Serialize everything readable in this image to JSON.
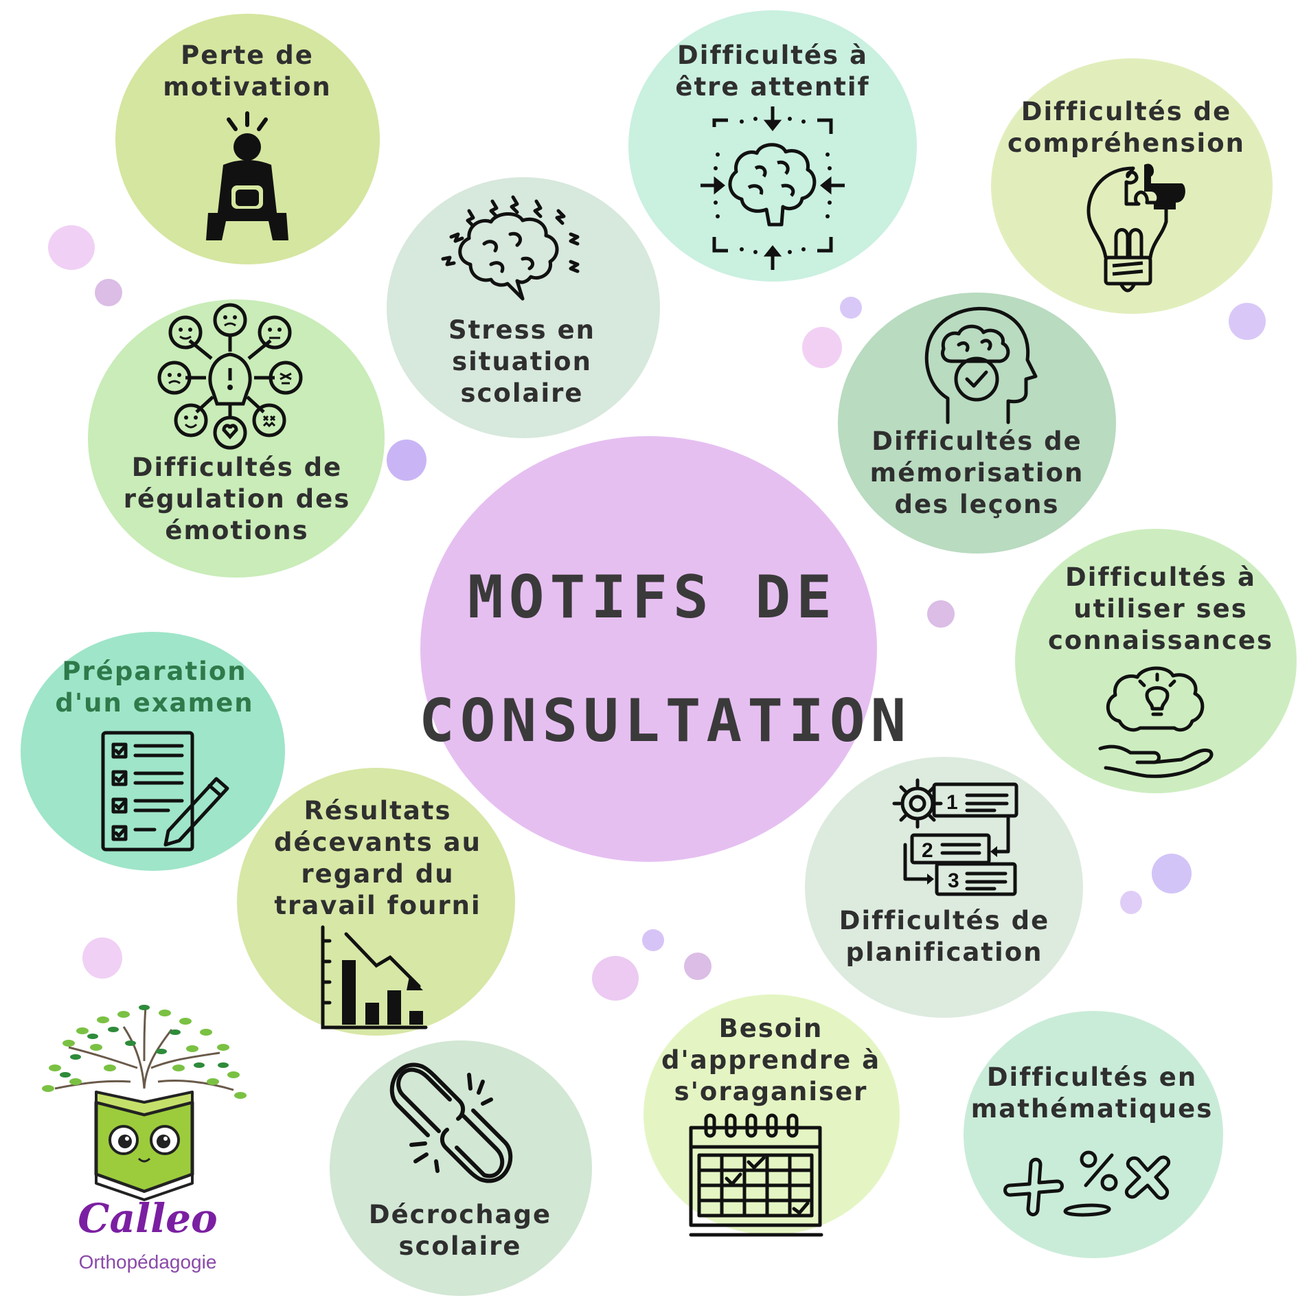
{
  "title": "MOTIFS DE\nCONSULTATION",
  "colors": {
    "center": "#e6bff1",
    "lime": "#d5e6a0",
    "mint": "#caf0e0",
    "pale_lime": "#e1eebc",
    "sage": "#d7e8dc",
    "light_green": "#c9ecb8",
    "sage_dark": "#b9dbc0",
    "aqua": "#9fe5c9",
    "yellow_green": "#e4f5c3",
    "pale_sage": "#dcebde",
    "accent_purple": "#7b1fa2"
  },
  "topics": [
    {
      "id": "motivation",
      "label": "Perte de\nmotivation",
      "icon": "slumped-person-icon"
    },
    {
      "id": "attention",
      "label": "Difficultés à\nêtre attentif",
      "icon": "focused-brain-icon"
    },
    {
      "id": "comprehension",
      "label": "Difficultés de\ncompréhension",
      "icon": "lightbulb-puzzle-icon"
    },
    {
      "id": "stress",
      "label": "Stress en\nsituation\nscolaire",
      "icon": "stressed-brain-icon"
    },
    {
      "id": "emotions",
      "label": "Difficultés de\nrégulation des\némotions",
      "icon": "emotions-network-icon"
    },
    {
      "id": "memorisation",
      "label": "Difficultés de\nmémorisation\ndes leçons",
      "icon": "head-brain-check-icon"
    },
    {
      "id": "connaissances",
      "label": "Difficultés à\nutiliser ses\nconnaissances",
      "icon": "hand-brain-idea-icon"
    },
    {
      "id": "examen",
      "label": "Préparation\nd'un examen",
      "icon": "checklist-pencil-icon"
    },
    {
      "id": "resultats",
      "label": "Résultats\ndécevants au\nregard du\ntravail fourni",
      "icon": "declining-chart-icon"
    },
    {
      "id": "planification",
      "label": "Difficultés de\nplanification",
      "icon": "numbered-steps-icon"
    },
    {
      "id": "decrochage",
      "label": "Décrochage\nscolaire",
      "icon": "broken-chain-icon"
    },
    {
      "id": "organisation",
      "label": "Besoin\nd'apprendre à\ns'oraganiser",
      "icon": "calendar-check-icon"
    },
    {
      "id": "maths",
      "label": "Difficultés en\nmathématiques",
      "icon": "math-symbols-icon"
    }
  ],
  "brand": {
    "name": "Calleo",
    "subtitle": "Orthopédagogie",
    "icon": "tree-book-owl-logo"
  }
}
